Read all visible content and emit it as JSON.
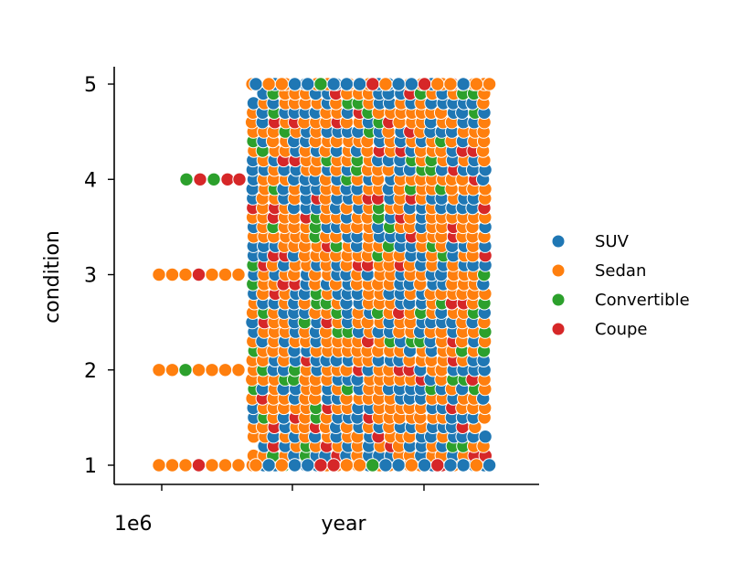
{
  "chart_data": {
    "type": "scatter",
    "xlabel": "year",
    "ylabel": "condition",
    "x_offset_label": "1e6",
    "yticks": [
      "1",
      "2",
      "3",
      "4",
      "5"
    ],
    "ylim": [
      0.85,
      5.17
    ],
    "grid": false,
    "legend_placement": "right",
    "series": [
      {
        "name": "SUV",
        "color": "#1f77b4"
      },
      {
        "name": "Sedan",
        "color": "#ff7f0e"
      },
      {
        "name": "Convertible",
        "color": "#2ca02c"
      },
      {
        "name": "Coupe",
        "color": "#d62728"
      }
    ]
  }
}
